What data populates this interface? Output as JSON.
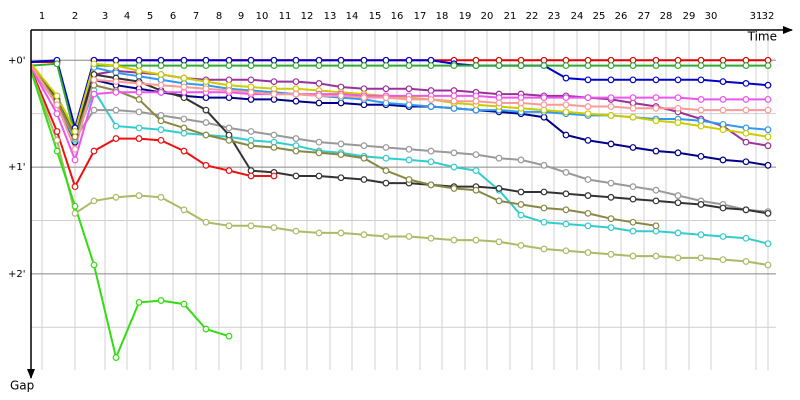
{
  "chart_data": {
    "type": "line",
    "xlabel": "Time",
    "ylabel": "Gap",
    "x": [
      0,
      26,
      44,
      63,
      85,
      108,
      130,
      153,
      175,
      198,
      220,
      243,
      265,
      288,
      310,
      333,
      355,
      378,
      400,
      423,
      445,
      468,
      490,
      513,
      535,
      557,
      580,
      602,
      625,
      647,
      670,
      692,
      715,
      737
    ],
    "xlim": [
      0,
      760
    ],
    "ylim": [
      -17,
      174
    ],
    "y_inverted": true,
    "grid": true,
    "xticks": [
      {
        "value": 11,
        "label": "1"
      },
      {
        "value": 44,
        "label": "2"
      },
      {
        "value": 74,
        "label": "3"
      },
      {
        "value": 96,
        "label": "4"
      },
      {
        "value": 119,
        "label": "5"
      },
      {
        "value": 142,
        "label": "6"
      },
      {
        "value": 165,
        "label": "7"
      },
      {
        "value": 188,
        "label": "8"
      },
      {
        "value": 210,
        "label": "9"
      },
      {
        "value": 231,
        "label": "10"
      },
      {
        "value": 254,
        "label": "11"
      },
      {
        "value": 276,
        "label": "12"
      },
      {
        "value": 299,
        "label": "13"
      },
      {
        "value": 321,
        "label": "14"
      },
      {
        "value": 344,
        "label": "15"
      },
      {
        "value": 366,
        "label": "16"
      },
      {
        "value": 389,
        "label": "17"
      },
      {
        "value": 411,
        "label": "18"
      },
      {
        "value": 434,
        "label": "19"
      },
      {
        "value": 456,
        "label": "20"
      },
      {
        "value": 479,
        "label": "21"
      },
      {
        "value": 501,
        "label": "22"
      },
      {
        "value": 523,
        "label": "23"
      },
      {
        "value": 546,
        "label": "24"
      },
      {
        "value": 568,
        "label": "25"
      },
      {
        "value": 590,
        "label": "26"
      },
      {
        "value": 613,
        "label": "27"
      },
      {
        "value": 635,
        "label": "28"
      },
      {
        "value": 658,
        "label": "29"
      },
      {
        "value": 680,
        "label": "30"
      },
      {
        "value": 725,
        "label": "31"
      },
      {
        "value": 737,
        "label": "32"
      }
    ],
    "yticks": [
      {
        "value": 0,
        "label": "+0'"
      },
      {
        "value": 60,
        "label": "+1'"
      },
      {
        "value": 120,
        "label": "+2'"
      }
    ],
    "yticks_minor": [
      30,
      90,
      150
    ],
    "series": [
      {
        "color": "#dd0000",
        "values": [
          1,
          1,
          39,
          0,
          0,
          0,
          0,
          0,
          0,
          0,
          0,
          0,
          0,
          0,
          0,
          0,
          0,
          0,
          0,
          0,
          0,
          0,
          0,
          0,
          0,
          0,
          0,
          0,
          0,
          0,
          0,
          0,
          0,
          0
        ]
      },
      {
        "color": "#0000cc",
        "values": [
          1,
          0,
          38,
          0,
          0,
          0,
          0,
          0,
          0,
          0,
          0,
          0,
          0,
          0,
          0,
          0,
          0,
          0,
          0,
          2,
          3,
          3,
          3,
          3,
          10,
          11,
          11,
          11,
          11,
          11,
          11,
          12,
          13,
          14
        ]
      },
      {
        "color": "#33aa33",
        "values": [
          3,
          2,
          42,
          3,
          3,
          3,
          3,
          3,
          3,
          3,
          3,
          3,
          3,
          3,
          3,
          3,
          3,
          3,
          3,
          3,
          3,
          3,
          3,
          3,
          3,
          3,
          3,
          3,
          3,
          3,
          3,
          3,
          3,
          3
        ]
      },
      {
        "color": "#993399",
        "values": [
          3,
          22,
          45,
          8,
          6,
          7,
          8,
          10,
          11,
          11,
          11,
          12,
          12,
          13,
          15,
          16,
          16,
          16,
          17,
          17,
          18,
          19,
          19,
          20,
          20,
          21,
          22,
          24,
          26,
          29,
          33,
          37,
          46,
          48
        ]
      },
      {
        "color": "#000088",
        "values": [
          2,
          24,
          46,
          11,
          14,
          16,
          18,
          20,
          21,
          21,
          22,
          22,
          23,
          24,
          24,
          25,
          25,
          26,
          26,
          27,
          28,
          29,
          30,
          32,
          42,
          45,
          47,
          49,
          51,
          52,
          54,
          56,
          57,
          59
        ]
      },
      {
        "color": "#33cccc",
        "values": [
          4,
          24,
          45,
          17,
          37,
          38,
          39,
          41,
          42,
          43,
          45,
          46,
          48,
          51,
          52,
          54,
          55,
          56,
          57,
          60,
          62,
          73,
          87,
          91,
          92,
          93,
          94,
          96,
          96,
          97,
          98,
          99,
          100,
          103
        ]
      },
      {
        "color": "#3399ee",
        "values": [
          3,
          20,
          40,
          4,
          7,
          9,
          11,
          13,
          14,
          16,
          17,
          18,
          19,
          20,
          21,
          22,
          24,
          25,
          26,
          27,
          28,
          28,
          29,
          29,
          30,
          31,
          31,
          32,
          33,
          33,
          34,
          36,
          38,
          39
        ]
      },
      {
        "color": "#999999",
        "values": [
          4,
          25,
          44,
          28,
          28,
          29,
          31,
          33,
          35,
          38,
          40,
          42,
          44,
          46,
          47,
          48,
          49,
          50,
          51,
          52,
          53,
          55,
          56,
          59,
          63,
          67,
          69,
          71,
          73,
          76,
          79,
          81,
          84,
          85
        ]
      },
      {
        "color": "#333333",
        "values": [
          2,
          22,
          42,
          8,
          10,
          12,
          17,
          21,
          28,
          42,
          62,
          63,
          65,
          65,
          66,
          67,
          69,
          69,
          70,
          71,
          71,
          72,
          74,
          74,
          75,
          76,
          77,
          78,
          79,
          80,
          81,
          83,
          84,
          86
        ]
      },
      {
        "color": "#888844",
        "values": [
          3,
          23,
          43,
          14,
          17,
          22,
          34,
          38,
          42,
          45,
          48,
          49,
          51,
          52,
          53,
          55,
          62,
          67,
          70,
          72,
          73,
          79,
          81,
          83,
          84,
          86,
          89,
          91,
          93,
          null,
          null,
          null,
          null,
          null
        ]
      },
      {
        "color": "#ee1111",
        "values": [
          5,
          40,
          71,
          51,
          44,
          44,
          45,
          51,
          59,
          62,
          65,
          65,
          null,
          null,
          null,
          null,
          null,
          null,
          null,
          null,
          null,
          null,
          null,
          null,
          null,
          null,
          null,
          null,
          null,
          null,
          null,
          null,
          null,
          null
        ]
      },
      {
        "color": "#aabb66",
        "values": [
          6,
          45,
          86,
          79,
          77,
          76,
          77,
          84,
          91,
          93,
          93,
          94,
          96,
          97,
          97,
          98,
          99,
          99,
          100,
          101,
          101,
          102,
          104,
          106,
          107,
          108,
          109,
          110,
          110,
          111,
          111,
          112,
          113,
          115
        ]
      },
      {
        "color": "#33dd11",
        "values": [
          6,
          51,
          82,
          115,
          167,
          136,
          135,
          137,
          151,
          155,
          null,
          null,
          null,
          null,
          null,
          null,
          null,
          null,
          null,
          null,
          null,
          null,
          null,
          null,
          null,
          null,
          null,
          null,
          null,
          null,
          null,
          null,
          null,
          null
        ]
      },
      {
        "color": "#cccc00",
        "values": [
          2,
          20,
          40,
          2,
          3,
          6,
          8,
          10,
          12,
          14,
          15,
          16,
          16,
          17,
          18,
          19,
          20,
          21,
          22,
          24,
          25,
          26,
          27,
          28,
          29,
          30,
          31,
          32,
          34,
          35,
          37,
          39,
          41,
          43
        ]
      },
      {
        "color": "#ee55ee",
        "values": [
          4,
          30,
          56,
          19,
          18,
          18,
          18,
          18,
          18,
          18,
          19,
          19,
          19,
          19,
          19,
          20,
          20,
          20,
          20,
          20,
          20,
          21,
          21,
          21,
          21,
          21,
          21,
          21,
          21,
          21,
          22,
          22,
          22,
          22
        ]
      },
      {
        "color": "#ff9999",
        "values": [
          3,
          25,
          50,
          11,
          12,
          13,
          14,
          15,
          16,
          17,
          18,
          19,
          19,
          20,
          20,
          21,
          21,
          22,
          22,
          23,
          23,
          24,
          24,
          25,
          25,
          26,
          26,
          27,
          27,
          27,
          28,
          28,
          28,
          28
        ]
      }
    ]
  }
}
